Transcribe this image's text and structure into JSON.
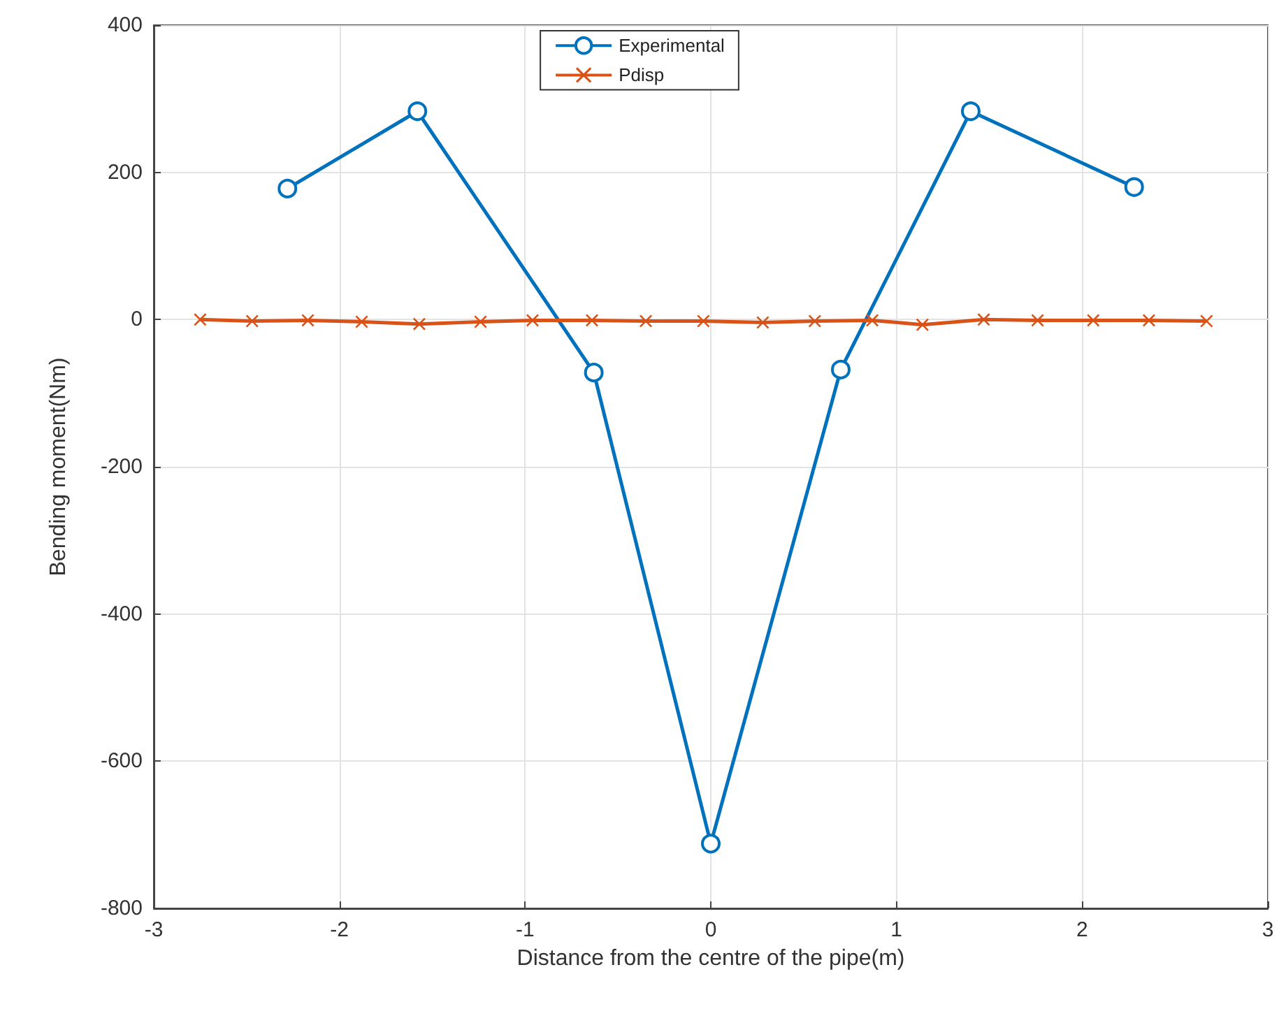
{
  "chart_data": {
    "type": "line",
    "xlabel": "Distance from the centre of the pipe(m)",
    "ylabel": "Bending moment(Nm)",
    "xlim": [
      -3,
      3
    ],
    "xticks": [
      -3,
      -2,
      -1,
      0,
      1,
      2,
      3
    ],
    "ylim": [
      -800,
      400
    ],
    "yticks": [
      -800,
      -600,
      -400,
      -200,
      0,
      200,
      400
    ],
    "grid": true,
    "legend": "top",
    "series": [
      {
        "name": "Experimental",
        "color": "#0072bd",
        "marker": "circle",
        "x": [
          -2.28,
          -1.58,
          -0.63,
          0,
          0.7,
          1.4,
          2.28
        ],
        "values": [
          178,
          283,
          -72,
          -712,
          -68,
          283,
          180
        ]
      },
      {
        "name": "Pdisp",
        "color": "#d95319",
        "marker": "cross",
        "x": [
          -2.75,
          -2.47,
          -2.17,
          -1.88,
          -1.57,
          -1.24,
          -0.96,
          -0.64,
          -0.35,
          -0.04,
          0.28,
          0.56,
          0.87,
          1.14,
          1.47,
          1.76,
          2.06,
          2.36,
          2.67
        ],
        "values": [
          0,
          -2,
          -1,
          -3,
          -6,
          -3,
          -1,
          -1,
          -2,
          -2,
          -4,
          -2,
          -1,
          -7,
          0,
          -1,
          -1,
          -1,
          -2
        ]
      }
    ]
  }
}
